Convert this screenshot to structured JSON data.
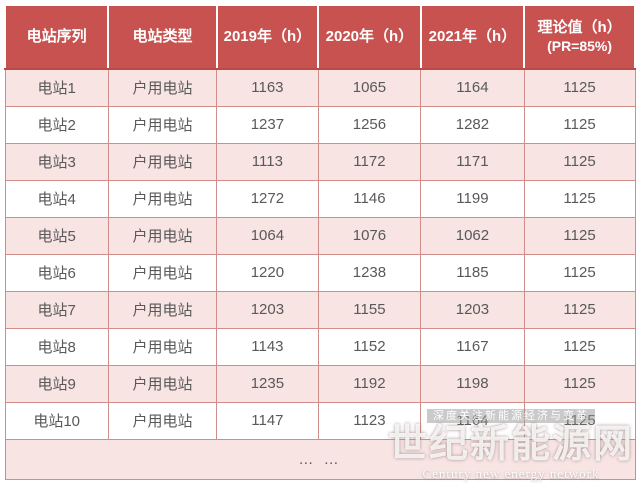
{
  "colors": {
    "header_bg": "#c85250",
    "header_text": "#ffffff",
    "header_bottom_border": "#b84a47",
    "grid_border": "#d18d8a",
    "row_alt_bg": "#f7e4e3",
    "row_bg": "#ffffff",
    "body_text": "#595959"
  },
  "table": {
    "columns": [
      {
        "label": "电站序列",
        "sub": ""
      },
      {
        "label": "电站类型",
        "sub": ""
      },
      {
        "label": "2019年（h）",
        "sub": ""
      },
      {
        "label": "2020年（h）",
        "sub": ""
      },
      {
        "label": "2021年（h）",
        "sub": ""
      },
      {
        "label": "理论值（h）",
        "sub": "(PR=85%)"
      }
    ],
    "rows": [
      [
        "电站1",
        "户用电站",
        "1163",
        "1065",
        "1164",
        "1125"
      ],
      [
        "电站2",
        "户用电站",
        "1237",
        "1256",
        "1282",
        "1125"
      ],
      [
        "电站3",
        "户用电站",
        "1113",
        "1172",
        "1171",
        "1125"
      ],
      [
        "电站4",
        "户用电站",
        "1272",
        "1146",
        "1199",
        "1125"
      ],
      [
        "电站5",
        "户用电站",
        "1064",
        "1076",
        "1062",
        "1125"
      ],
      [
        "电站6",
        "户用电站",
        "1220",
        "1238",
        "1185",
        "1125"
      ],
      [
        "电站7",
        "户用电站",
        "1203",
        "1155",
        "1203",
        "1125"
      ],
      [
        "电站8",
        "户用电站",
        "1143",
        "1152",
        "1167",
        "1125"
      ],
      [
        "电站9",
        "户用电站",
        "1235",
        "1192",
        "1198",
        "1125"
      ],
      [
        "电站10",
        "户用电站",
        "1147",
        "1123",
        "1164",
        "1125"
      ]
    ],
    "ellipsis": "… …"
  },
  "watermark": {
    "slogan": "深度关注新能源经济与变革",
    "title": "世纪新能源网",
    "subtitle": "Century new energy network"
  },
  "chart_data": {
    "type": "table",
    "title": "",
    "columns": [
      "电站序列",
      "电站类型",
      "2019年（h）",
      "2020年（h）",
      "2021年（h）",
      "理论值（h）(PR=85%)"
    ],
    "rows": [
      [
        "电站1",
        "户用电站",
        1163,
        1065,
        1164,
        1125
      ],
      [
        "电站2",
        "户用电站",
        1237,
        1256,
        1282,
        1125
      ],
      [
        "电站3",
        "户用电站",
        1113,
        1172,
        1171,
        1125
      ],
      [
        "电站4",
        "户用电站",
        1272,
        1146,
        1199,
        1125
      ],
      [
        "电站5",
        "户用电站",
        1064,
        1076,
        1062,
        1125
      ],
      [
        "电站6",
        "户用电站",
        1220,
        1238,
        1185,
        1125
      ],
      [
        "电站7",
        "户用电站",
        1203,
        1155,
        1203,
        1125
      ],
      [
        "电站8",
        "户用电站",
        1143,
        1152,
        1167,
        1125
      ],
      [
        "电站9",
        "户用电站",
        1235,
        1192,
        1198,
        1125
      ],
      [
        "电站10",
        "户用电站",
        1147,
        1123,
        1164,
        1125
      ]
    ],
    "footer": "… …"
  }
}
